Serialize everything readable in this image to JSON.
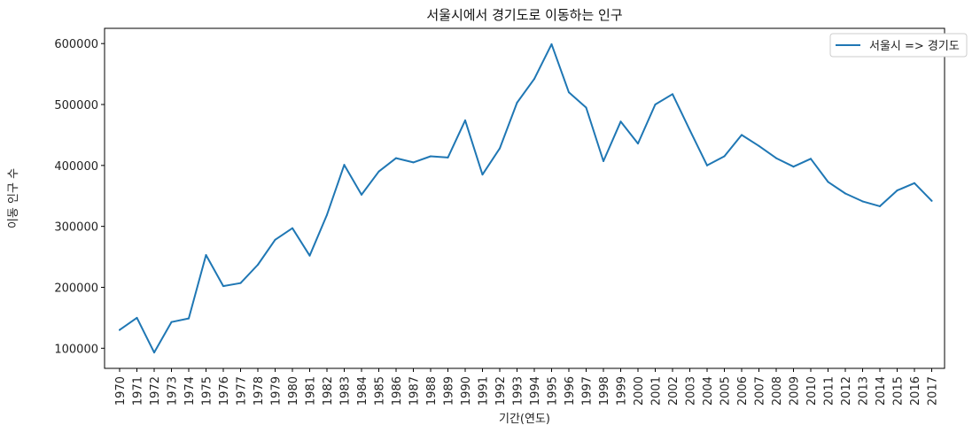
{
  "chart_data": {
    "type": "line",
    "title": "서울시에서 경기도로 이동하는 인구",
    "xlabel": "기간(연도)",
    "ylabel": "이동 인구 수",
    "categories": [
      "1970",
      "1971",
      "1972",
      "1973",
      "1974",
      "1975",
      "1976",
      "1977",
      "1978",
      "1979",
      "1980",
      "1981",
      "1982",
      "1983",
      "1984",
      "1985",
      "1986",
      "1987",
      "1988",
      "1989",
      "1990",
      "1991",
      "1992",
      "1993",
      "1994",
      "1995",
      "1996",
      "1997",
      "1998",
      "1999",
      "2000",
      "2001",
      "2002",
      "2003",
      "2004",
      "2005",
      "2006",
      "2007",
      "2008",
      "2009",
      "2010",
      "2011",
      "2012",
      "2013",
      "2014",
      "2015",
      "2016",
      "2017"
    ],
    "series": [
      {
        "name": "서울시 => 경기도",
        "color": "#1f77b4",
        "values": [
          130000,
          150000,
          93000,
          143000,
          149000,
          253000,
          202000,
          207000,
          237000,
          278000,
          297000,
          252000,
          319000,
          401000,
          352000,
          390000,
          412000,
          405000,
          415000,
          413000,
          474000,
          385000,
          428000,
          503000,
          542000,
          599000,
          520000,
          495000,
          407000,
          472000,
          436000,
          500000,
          517000,
          458000,
          400000,
          415000,
          450000,
          432000,
          412000,
          398000,
          411000,
          373000,
          354000,
          341000,
          333000,
          359000,
          371000,
          342000
        ]
      }
    ],
    "yticks": [
      100000,
      200000,
      300000,
      400000,
      500000,
      600000
    ],
    "ylim": [
      67000,
      625000
    ],
    "grid": false,
    "legend_position": "top-right"
  }
}
